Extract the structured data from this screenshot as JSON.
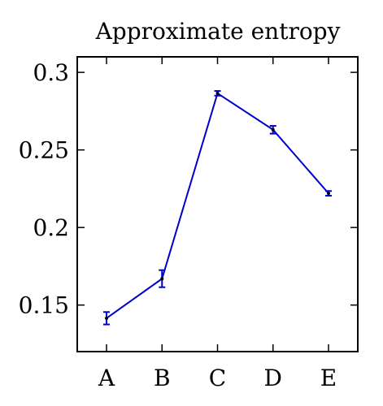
{
  "chart_data": {
    "type": "line",
    "title": "Approximate entropy",
    "xlabel": "",
    "ylabel": "",
    "categories": [
      "A",
      "B",
      "C",
      "D",
      "E"
    ],
    "series": [
      {
        "values": [
          0.1415,
          0.167,
          0.2865,
          0.263,
          0.222
        ],
        "errors": [
          0.004,
          0.0055,
          0.0015,
          0.0025,
          0.0015
        ],
        "color": "#0000cc",
        "marker_color": "#000000"
      }
    ],
    "ylim": [
      0.12,
      0.31
    ],
    "yticks": [
      0.15,
      0.2,
      0.25,
      0.3
    ],
    "ytick_labels": [
      "0.15",
      "0.2",
      "0.25",
      "0.3"
    ],
    "grid": false,
    "legend": "none"
  }
}
